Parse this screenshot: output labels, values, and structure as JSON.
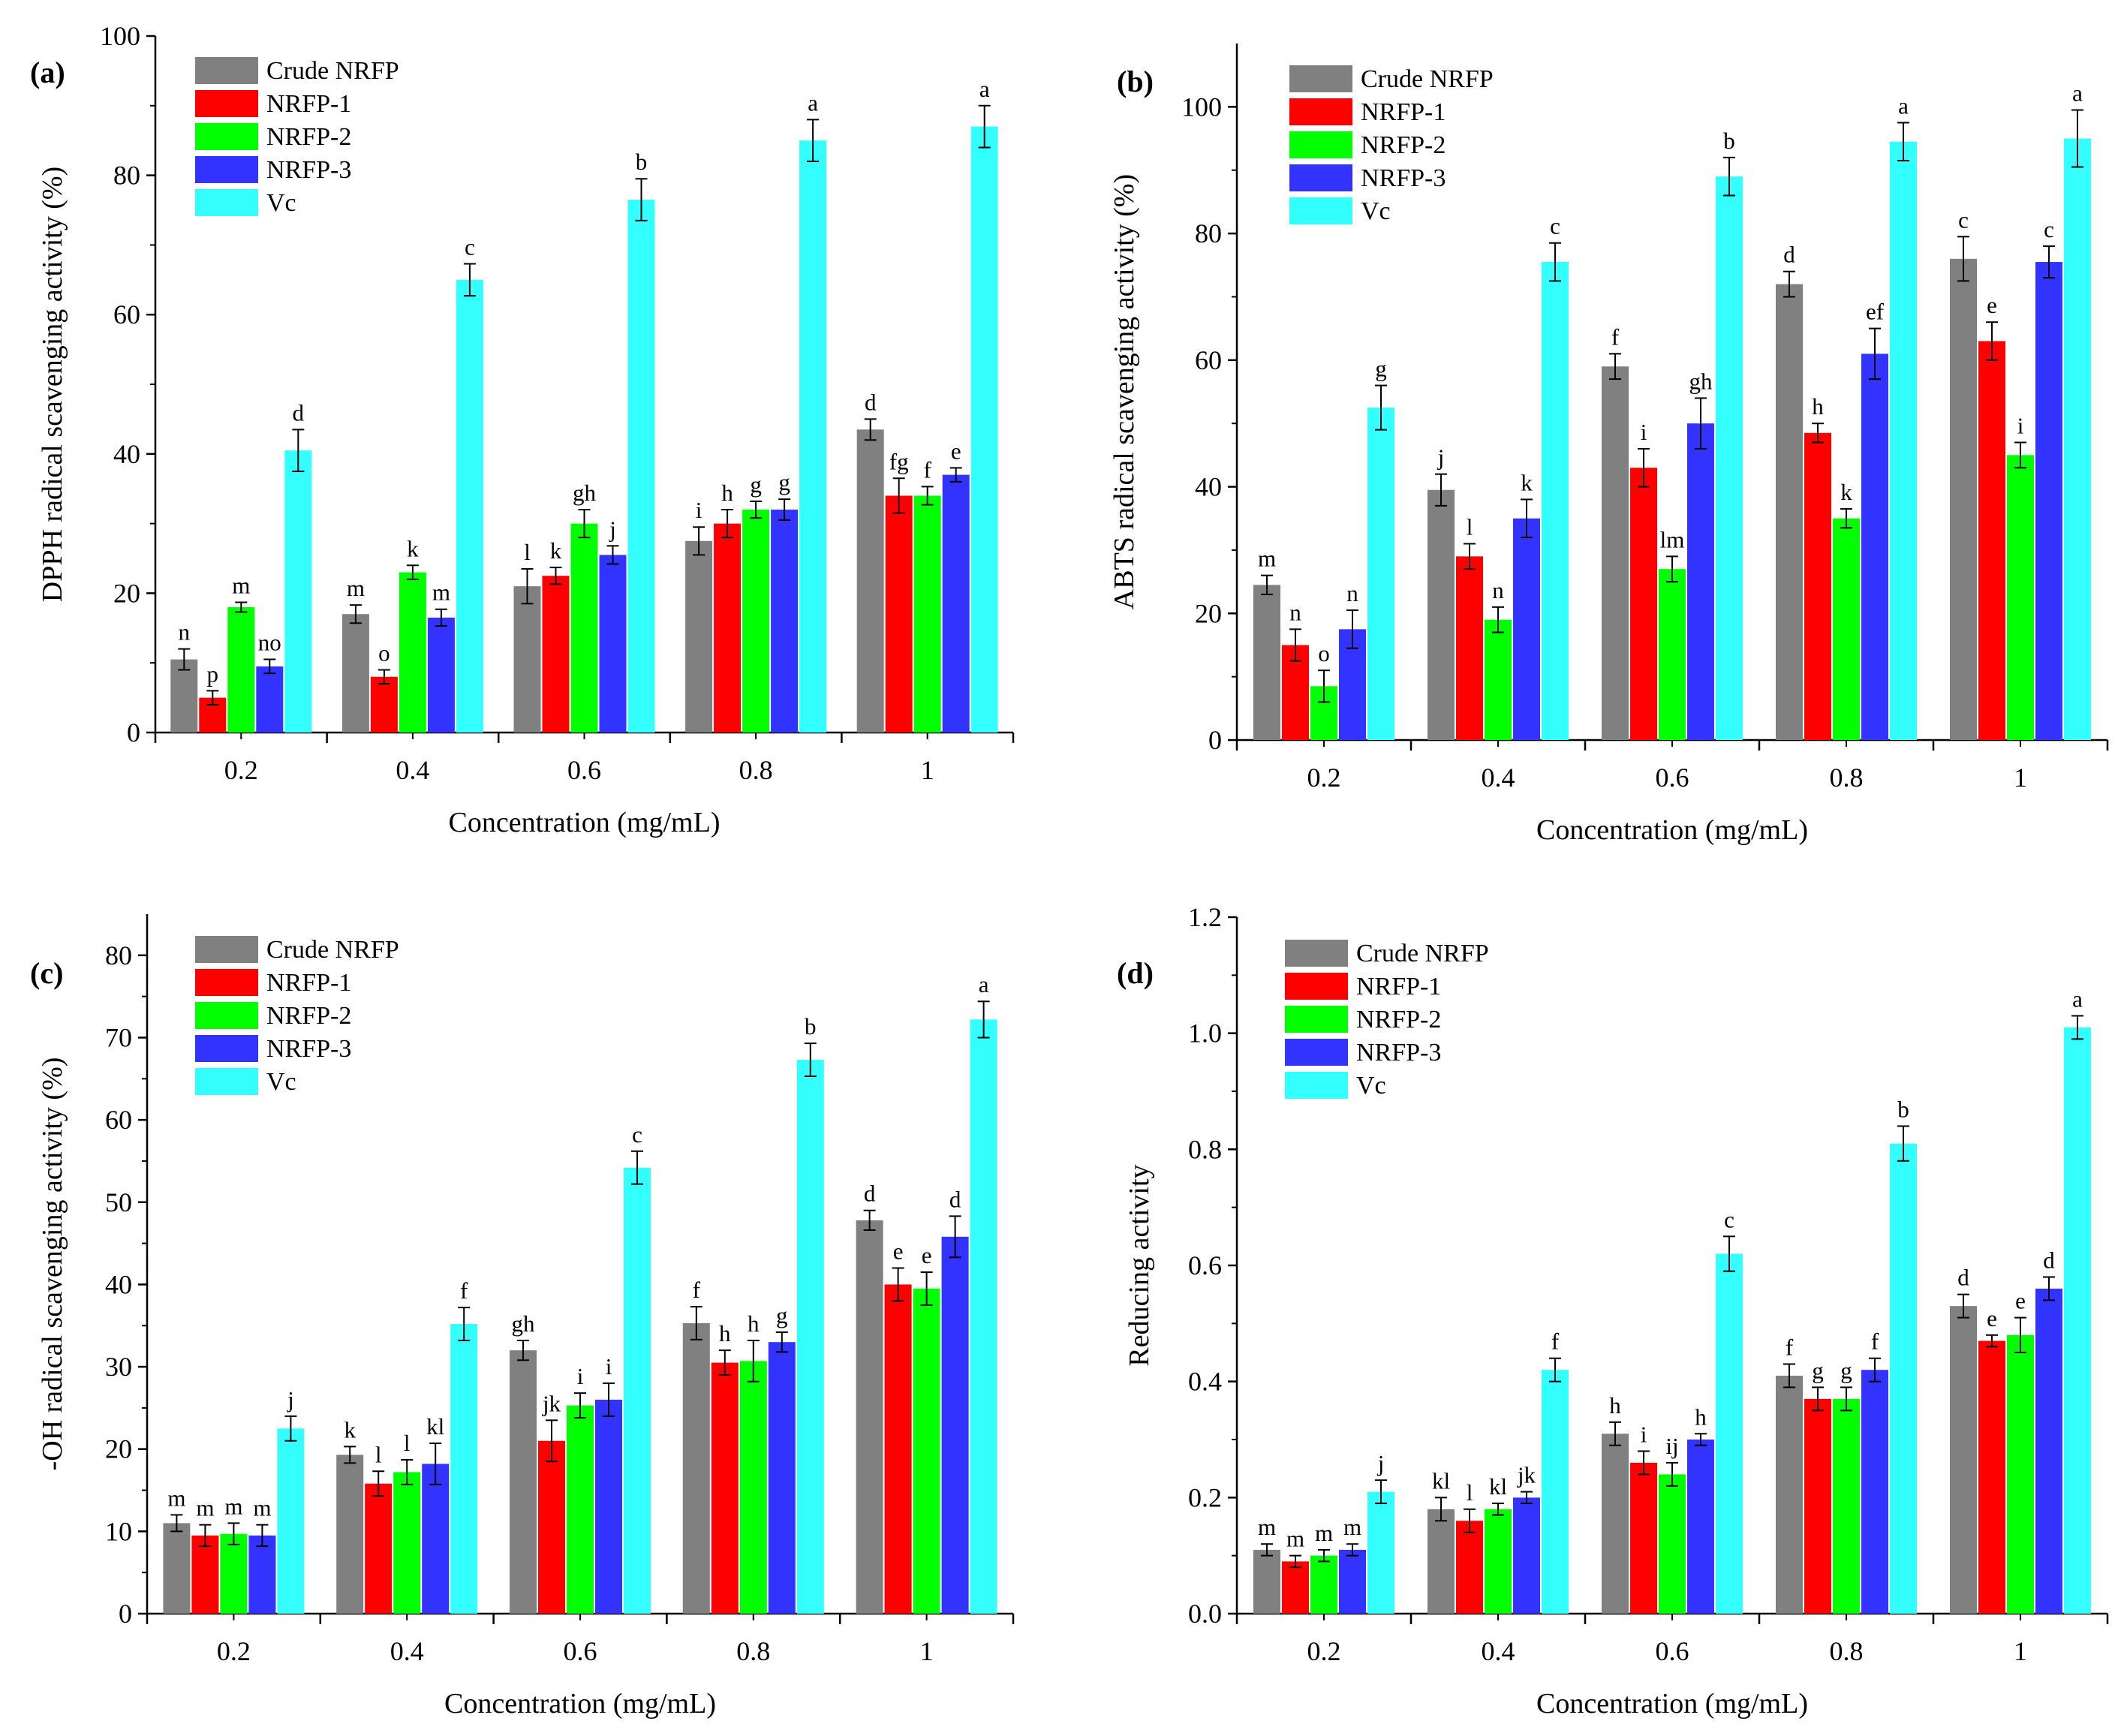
{
  "legend": {
    "entries": [
      "Crude NRFP",
      "NRFP-1",
      "NRFP-2",
      "NRFP-3",
      "Vc"
    ],
    "colors": [
      "#808080",
      "#ff0000",
      "#00ff00",
      "#3333ff",
      "#33ffff"
    ]
  },
  "chart_data": [
    {
      "type": "bar",
      "panel_label": "(a)",
      "xlabel": "Concentration (mg/mL)",
      "ylabel": "DPPH radical scavenging activity (%)",
      "ylim": [
        0,
        100
      ],
      "yticks": [
        0,
        20,
        40,
        60,
        80,
        100
      ],
      "ytick_labels": [
        "0",
        "20",
        "40",
        "60",
        "80",
        "100"
      ],
      "categories": [
        "0.2",
        "0.4",
        "0.6",
        "0.8",
        "1"
      ],
      "legend_position": "top-left",
      "series": [
        {
          "name": "Crude NRFP",
          "values": [
            10.5,
            17.0,
            21.0,
            27.5,
            43.5
          ],
          "errors": [
            1.5,
            1.3,
            2.5,
            2.0,
            1.5
          ],
          "letters": [
            "n",
            "m",
            "l",
            "i",
            "d"
          ]
        },
        {
          "name": "NRFP-1",
          "values": [
            5.0,
            8.0,
            22.5,
            30.0,
            34.0
          ],
          "errors": [
            1.0,
            1.0,
            1.2,
            2.0,
            2.5
          ],
          "letters": [
            "p",
            "o",
            "k",
            "h",
            "fg"
          ]
        },
        {
          "name": "NRFP-2",
          "values": [
            18.0,
            23.0,
            30.0,
            32.0,
            34.0
          ],
          "errors": [
            0.7,
            1.0,
            2.0,
            1.2,
            1.3
          ],
          "letters": [
            "m",
            "k",
            "gh",
            "g",
            "f"
          ]
        },
        {
          "name": "NRFP-3",
          "values": [
            9.5,
            16.5,
            25.5,
            32.0,
            37.0
          ],
          "errors": [
            1.0,
            1.2,
            1.3,
            1.5,
            1.0
          ],
          "letters": [
            "no",
            "m",
            "j",
            "g",
            "e"
          ]
        },
        {
          "name": "Vc",
          "values": [
            40.5,
            65.0,
            76.5,
            85.0,
            87.0
          ],
          "errors": [
            3.0,
            2.3,
            3.0,
            3.0,
            3.0
          ],
          "letters": [
            "d",
            "c",
            "b",
            "a",
            "a"
          ]
        }
      ]
    },
    {
      "type": "bar",
      "panel_label": "(b)",
      "xlabel": "Concentration (mg/mL)",
      "ylabel": "ABTS radical scavenging activity (%)",
      "ylim": [
        0,
        110
      ],
      "yticks": [
        0,
        20,
        40,
        60,
        80,
        100
      ],
      "ytick_labels": [
        "0",
        "20",
        "40",
        "60",
        "80",
        "100"
      ],
      "categories": [
        "0.2",
        "0.4",
        "0.6",
        "0.8",
        "1"
      ],
      "legend_position": "top-left",
      "series": [
        {
          "name": "Crude NRFP",
          "values": [
            24.5,
            39.5,
            59.0,
            72.0,
            76.0
          ],
          "errors": [
            1.5,
            2.5,
            2.0,
            2.0,
            3.5
          ],
          "letters": [
            "m",
            "j",
            "f",
            "d",
            "c"
          ]
        },
        {
          "name": "NRFP-1",
          "values": [
            15.0,
            29.0,
            43.0,
            48.5,
            63.0
          ],
          "errors": [
            2.5,
            2.0,
            3.0,
            1.5,
            3.0
          ],
          "letters": [
            "n",
            "l",
            "i",
            "h",
            "e"
          ]
        },
        {
          "name": "NRFP-2",
          "values": [
            8.5,
            19.0,
            27.0,
            35.0,
            45.0
          ],
          "errors": [
            2.5,
            2.0,
            2.0,
            1.5,
            2.0
          ],
          "letters": [
            "o",
            "n",
            "lm",
            "k",
            "i"
          ]
        },
        {
          "name": "NRFP-3",
          "values": [
            17.5,
            35.0,
            50.0,
            61.0,
            75.5
          ],
          "errors": [
            3.0,
            3.0,
            4.0,
            4.0,
            2.5
          ],
          "letters": [
            "n",
            "k",
            "gh",
            "ef",
            "c"
          ]
        },
        {
          "name": "Vc",
          "values": [
            52.5,
            75.5,
            89.0,
            94.5,
            95.0
          ],
          "errors": [
            3.5,
            3.0,
            3.0,
            3.0,
            4.5
          ],
          "letters": [
            "g",
            "c",
            "b",
            "a",
            "a"
          ]
        }
      ]
    },
    {
      "type": "bar",
      "panel_label": "(c)",
      "xlabel": "Concentration (mg/mL)",
      "ylabel": "-OH radical scavenging activity (%)",
      "ylim": [
        0,
        85
      ],
      "yticks": [
        0,
        10,
        20,
        30,
        40,
        50,
        60,
        70,
        80
      ],
      "ytick_labels": [
        "0",
        "10",
        "20",
        "30",
        "40",
        "50",
        "60",
        "70",
        "80"
      ],
      "categories": [
        "0.2",
        "0.4",
        "0.6",
        "0.8",
        "1"
      ],
      "legend_position": "top-left",
      "series": [
        {
          "name": "Crude NRFP",
          "values": [
            11.0,
            19.3,
            32.0,
            35.3,
            47.8
          ],
          "errors": [
            1.0,
            1.0,
            1.2,
            2.0,
            1.2
          ],
          "letters": [
            "m",
            "k",
            "gh",
            "f",
            "d"
          ]
        },
        {
          "name": "NRFP-1",
          "values": [
            9.5,
            15.8,
            21.0,
            30.5,
            40.0
          ],
          "errors": [
            1.3,
            1.5,
            2.5,
            1.5,
            2.0
          ],
          "letters": [
            "m",
            "l",
            "jk",
            "h",
            "e"
          ]
        },
        {
          "name": "NRFP-2",
          "values": [
            9.7,
            17.2,
            25.3,
            30.7,
            39.5
          ],
          "errors": [
            1.3,
            1.5,
            1.5,
            2.5,
            2.0
          ],
          "letters": [
            "m",
            "l",
            "i",
            "h",
            "e"
          ]
        },
        {
          "name": "NRFP-3",
          "values": [
            9.5,
            18.2,
            26.0,
            33.0,
            45.8
          ],
          "errors": [
            1.3,
            2.5,
            2.0,
            1.2,
            2.5
          ],
          "letters": [
            "m",
            "kl",
            "i",
            "g",
            "d"
          ]
        },
        {
          "name": "Vc",
          "values": [
            22.5,
            35.2,
            54.2,
            67.3,
            72.2
          ],
          "errors": [
            1.5,
            2.0,
            2.0,
            2.0,
            2.2
          ],
          "letters": [
            "j",
            "f",
            "c",
            "b",
            "a"
          ]
        }
      ]
    },
    {
      "type": "bar",
      "panel_label": "(d)",
      "xlabel": "Concentration (mg/mL)",
      "ylabel": "Reducing activity",
      "ylim": [
        0,
        1.2
      ],
      "yticks": [
        0,
        0.2,
        0.4,
        0.6,
        0.8,
        1.0,
        1.2
      ],
      "ytick_labels": [
        "0.0",
        "0.2",
        "0.4",
        "0.6",
        "0.8",
        "1.0",
        "1.2"
      ],
      "categories": [
        "0.2",
        "0.4",
        "0.6",
        "0.8",
        "1"
      ],
      "legend_position": "top-left",
      "series": [
        {
          "name": "Crude NRFP",
          "values": [
            0.11,
            0.18,
            0.31,
            0.41,
            0.53
          ],
          "errors": [
            0.01,
            0.02,
            0.02,
            0.02,
            0.02
          ],
          "letters": [
            "m",
            "kl",
            "h",
            "f",
            "d"
          ]
        },
        {
          "name": "NRFP-1",
          "values": [
            0.09,
            0.16,
            0.26,
            0.37,
            0.47
          ],
          "errors": [
            0.01,
            0.02,
            0.02,
            0.02,
            0.01
          ],
          "letters": [
            "m",
            "l",
            "i",
            "g",
            "e"
          ]
        },
        {
          "name": "NRFP-2",
          "values": [
            0.1,
            0.18,
            0.24,
            0.37,
            0.48
          ],
          "errors": [
            0.01,
            0.01,
            0.02,
            0.02,
            0.03
          ],
          "letters": [
            "m",
            "kl",
            "ij",
            "g",
            "e"
          ]
        },
        {
          "name": "NRFP-3",
          "values": [
            0.11,
            0.2,
            0.3,
            0.42,
            0.56
          ],
          "errors": [
            0.01,
            0.01,
            0.01,
            0.02,
            0.02
          ],
          "letters": [
            "m",
            "jk",
            "h",
            "f",
            "d"
          ]
        },
        {
          "name": "Vc",
          "values": [
            0.21,
            0.42,
            0.62,
            0.81,
            1.01
          ],
          "errors": [
            0.02,
            0.02,
            0.03,
            0.03,
            0.02
          ],
          "letters": [
            "j",
            "f",
            "c",
            "b",
            "a"
          ]
        }
      ]
    }
  ]
}
